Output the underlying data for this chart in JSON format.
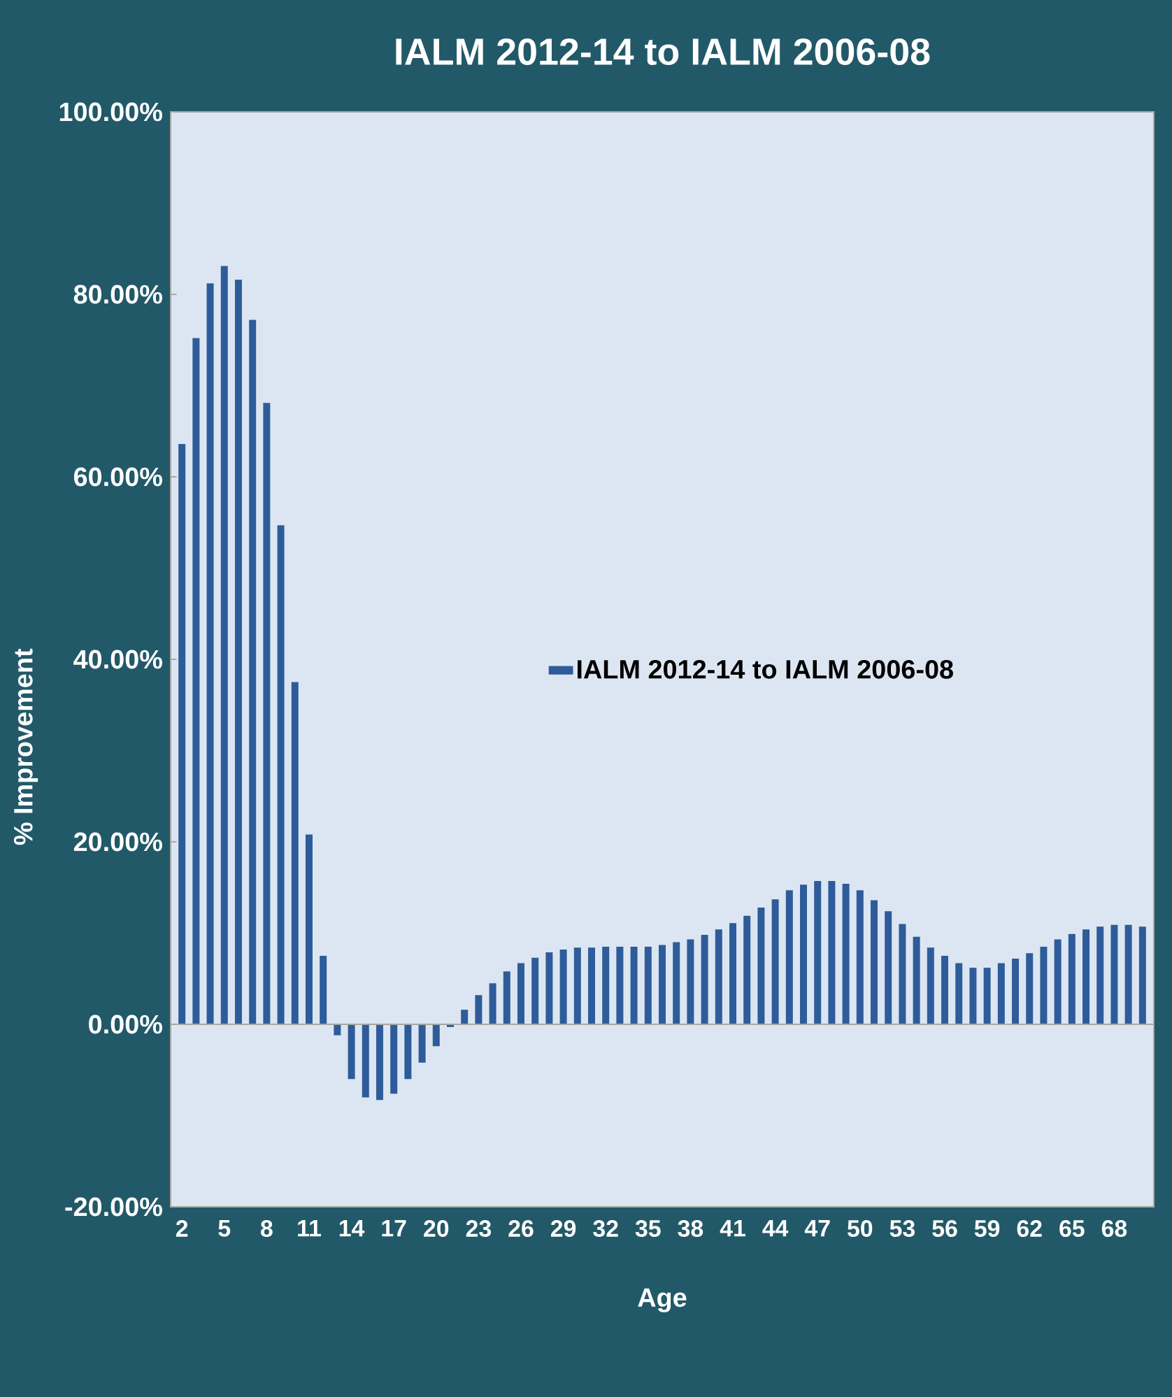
{
  "chart_data": {
    "type": "bar",
    "title": "IALM 2012-14 to IALM 2006-08",
    "xlabel": "Age",
    "ylabel": "% Improvement",
    "categories": [
      "2",
      null,
      null,
      "5",
      null,
      null,
      "8",
      null,
      null,
      "11",
      null,
      null,
      "14",
      null,
      null,
      "17",
      null,
      null,
      "20",
      null,
      null,
      "23",
      null,
      null,
      "26",
      null,
      null,
      "29",
      null,
      null,
      "32",
      null,
      null,
      "35",
      null,
      null,
      "38",
      null,
      null,
      "41",
      null,
      null,
      "44",
      null,
      null,
      "47",
      null,
      null,
      "50",
      null,
      null,
      "53",
      null,
      null,
      "56",
      null,
      null,
      "59",
      null,
      null,
      "62",
      null,
      null,
      "65",
      null,
      null,
      "68",
      null,
      null
    ],
    "series": [
      {
        "name": "IALM 2012-14 to IALM 2006-08",
        "color": "#2e5c9a",
        "values": [
          63.6,
          75.2,
          81.2,
          83.1,
          81.6,
          77.2,
          68.1,
          54.7,
          37.5,
          20.8,
          7.5,
          -1.2,
          -6.0,
          -8.0,
          -8.3,
          -7.6,
          -6.0,
          -4.2,
          -2.4,
          -0.3,
          1.6,
          3.2,
          4.5,
          5.8,
          6.7,
          7.3,
          7.9,
          8.2,
          8.4,
          8.4,
          8.5,
          8.5,
          8.5,
          8.5,
          8.7,
          9.0,
          9.3,
          9.8,
          10.4,
          11.1,
          11.9,
          12.8,
          13.7,
          14.7,
          15.3,
          15.7,
          15.7,
          15.4,
          14.7,
          13.6,
          12.4,
          11.0,
          9.6,
          8.4,
          7.5,
          6.7,
          6.2,
          6.2,
          6.7,
          7.2,
          7.8,
          8.5,
          9.3,
          9.9,
          10.4,
          10.7,
          10.9,
          10.9,
          10.7
        ]
      }
    ],
    "ylim": [
      -20,
      100
    ],
    "yticks": [
      {
        "value": -20,
        "label": "-20.00%"
      },
      {
        "value": 0,
        "label": "0.00%"
      },
      {
        "value": 20,
        "label": "20.00%"
      },
      {
        "value": 40,
        "label": "40.00%"
      },
      {
        "value": 60,
        "label": "60.00%"
      },
      {
        "value": 80,
        "label": "80.00%"
      },
      {
        "value": 100,
        "label": "100.00%"
      }
    ],
    "legend": "right"
  }
}
